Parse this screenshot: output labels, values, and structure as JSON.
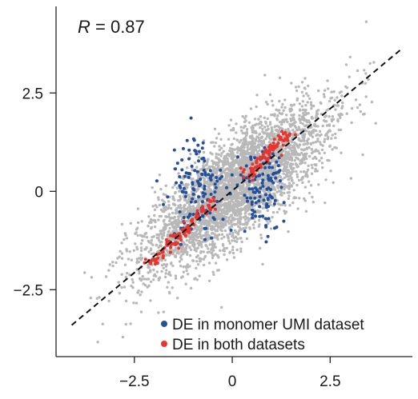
{
  "chart_data": {
    "type": "scatter",
    "title": "",
    "xlabel": "",
    "ylabel": "",
    "xlim": [
      -4.5,
      4.6
    ],
    "ylim": [
      -4.2,
      4.7
    ],
    "x_ticks": [
      -2.5,
      0,
      2.5
    ],
    "x_tick_labels": [
      "−2.5",
      "0",
      "2.5"
    ],
    "y_ticks": [
      -2.5,
      0,
      2.5
    ],
    "y_tick_labels": [
      "−2.5",
      "0",
      "2.5"
    ],
    "grid": false,
    "annotation": {
      "symbol": "R",
      "text": " = 0.87"
    },
    "reference_line": {
      "style": "dashed",
      "color": "#111111",
      "from": [
        -4.1,
        -3.4
      ],
      "to": [
        4.3,
        3.6
      ]
    },
    "legend": {
      "position": "bottom-right"
    },
    "series": [
      {
        "name": "",
        "color": "#b8b8b8",
        "description_count_approx": 4000,
        "distribution": {
          "center": [
            0.1,
            0.1
          ],
          "major_sd": 1.45,
          "minor_sd": 0.5,
          "angle_deg": 40,
          "max_y": 4.6
        }
      },
      {
        "name": "DE in monomer UMI dataset",
        "color": "#22509e",
        "clusters": [
          {
            "center": [
              -0.85,
              0.1
            ],
            "spread": [
              0.35,
              0.65
            ],
            "count": 120
          },
          {
            "center": [
              0.75,
              0.1
            ],
            "spread": [
              0.3,
              0.55
            ],
            "count": 110
          }
        ]
      },
      {
        "name": "DE in both datasets",
        "color": "#e8352e",
        "segments": [
          {
            "from": [
              -2.1,
              -1.85
            ],
            "to": [
              -0.45,
              -0.25
            ],
            "count": 110
          },
          {
            "from": [
              0.35,
              0.35
            ],
            "to": [
              1.5,
              1.55
            ],
            "count": 90
          }
        ]
      }
    ]
  }
}
